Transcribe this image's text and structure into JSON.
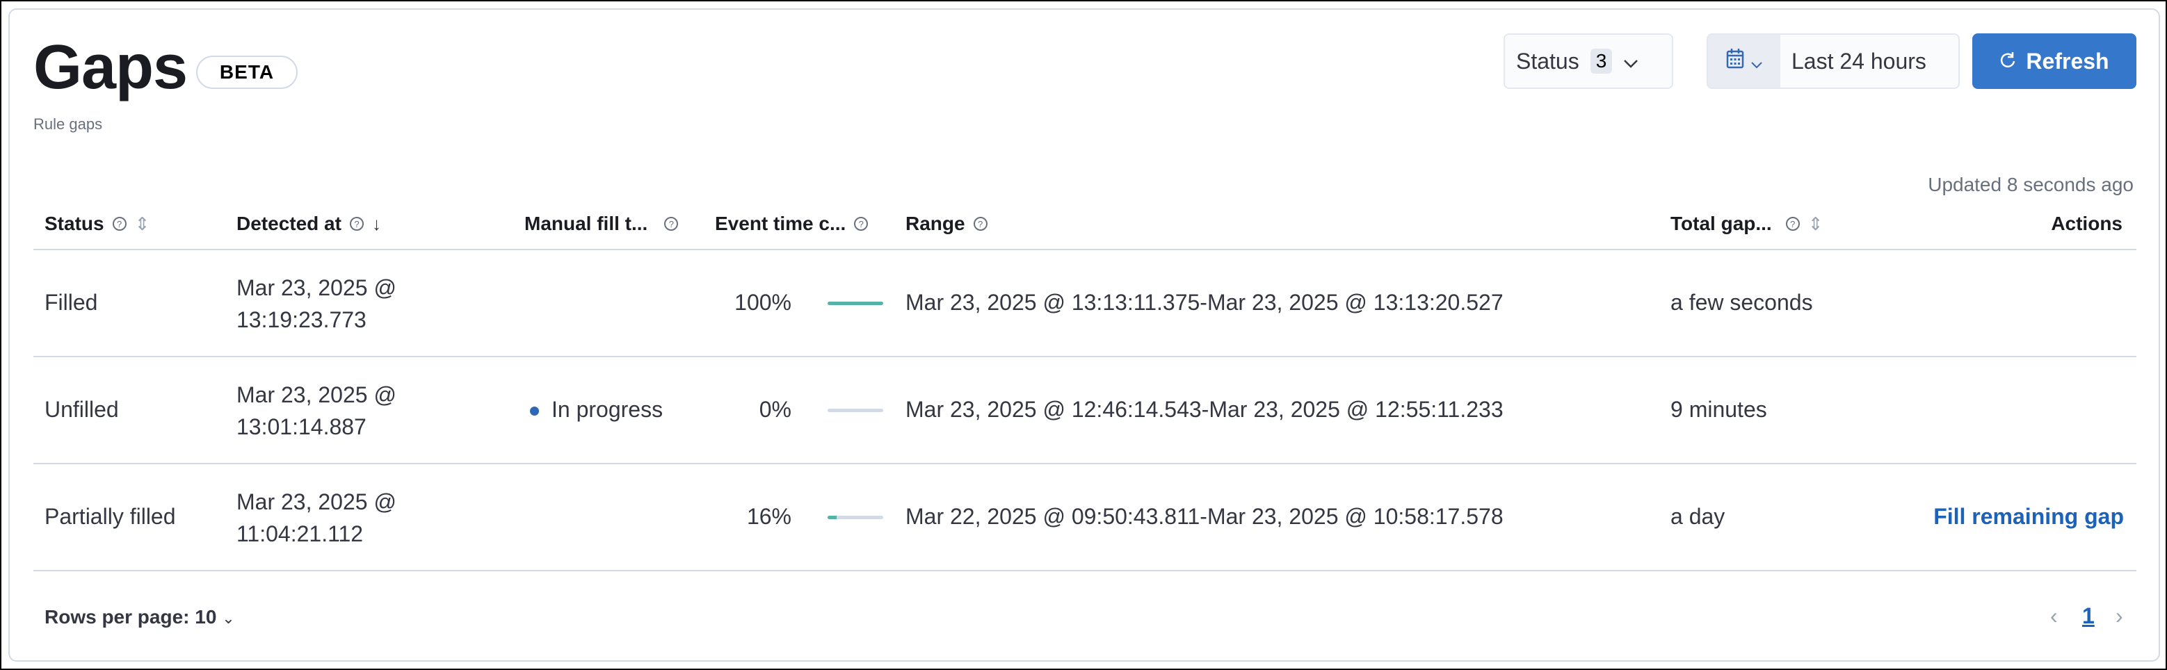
{
  "header": {
    "title": "Gaps",
    "badge": "BETA",
    "subtitle": "Rule gaps"
  },
  "toolbar": {
    "status_filter": {
      "label": "Status",
      "count": "3"
    },
    "date_picker": {
      "icon": "calendar-icon",
      "value": "Last 24 hours"
    },
    "refresh_label": "Refresh"
  },
  "updated_text": "Updated 8 seconds ago",
  "table": {
    "columns": [
      "Status",
      "Detected at",
      "Manual fill t...",
      "Event time c...",
      "Range",
      "Total gap...",
      "Actions"
    ],
    "rows": [
      {
        "status": "Filled",
        "detected_date": "Mar 23, 2025 @",
        "detected_time": "13:19:23.773",
        "manual_fill": "",
        "event_time_percent": "100%",
        "progress": 100,
        "range": "Mar 23, 2025 @ 13:13:11.375-Mar 23, 2025 @ 13:13:20.527",
        "total_gap": "a few seconds",
        "action": ""
      },
      {
        "status": "Unfilled",
        "detected_date": "Mar 23, 2025 @",
        "detected_time": "13:01:14.887",
        "manual_fill": "In progress",
        "event_time_percent": "0%",
        "progress": 0,
        "range": "Mar 23, 2025 @ 12:46:14.543-Mar 23, 2025 @ 12:55:11.233",
        "total_gap": "9 minutes",
        "action": ""
      },
      {
        "status": "Partially filled",
        "detected_date": "Mar 23, 2025 @",
        "detected_time": "11:04:21.112",
        "manual_fill": "",
        "event_time_percent": "16%",
        "progress": 16,
        "range": "Mar 22, 2025 @ 09:50:43.811-Mar 23, 2025 @ 10:58:17.578",
        "total_gap": "a day",
        "action": "Fill remaining gap"
      }
    ]
  },
  "footer": {
    "rows_per_page": "Rows per page: 10",
    "current_page": "1"
  },
  "colors": {
    "accent": "#3577cb",
    "progress_fill": "#54b3a6",
    "in_progress_dot": "#2d67b5",
    "link": "#1c62b9"
  }
}
